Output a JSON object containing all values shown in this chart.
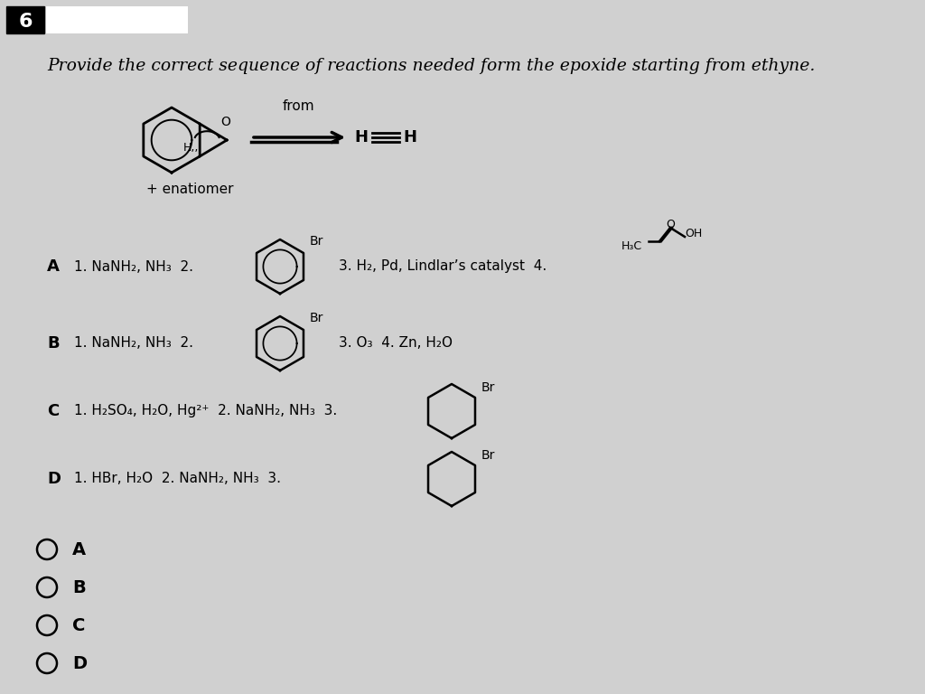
{
  "background_color": "#d0d0d0",
  "title_number": "6",
  "question_text": "Provide the correct sequence of reactions needed form the epoxide starting from ethyne.",
  "answer_options": [
    "A",
    "B",
    "C",
    "D"
  ],
  "option_A_text1": "1. NaNH₂, NH₃  2.",
  "option_A_text2": "3. H₂, Pd, Lindlar’s catalyst  4.",
  "option_B_text1": "1. NaNH₂, NH₃  2.",
  "option_B_text2": "3. O₃  4. Zn, H₂O",
  "option_C_text1": "1. H₂SO₄, H₂O, Hg²⁺  2. NaNH₂, NH₃  3.",
  "option_D_text1": "1. HBr, H₂O  2. NaNH₂, NH₃  3.",
  "from_label": "from",
  "enantiomer_label": "+ enatiomer"
}
